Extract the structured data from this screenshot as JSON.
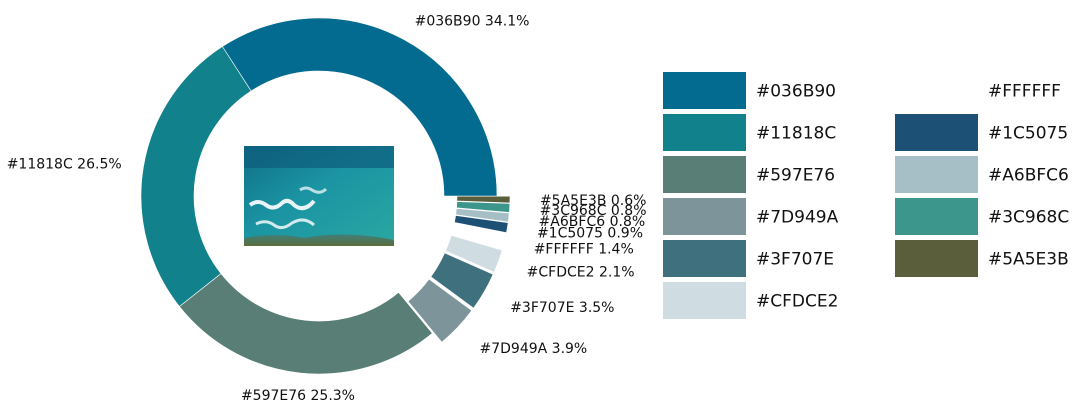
{
  "chart_data": {
    "type": "pie",
    "donut": true,
    "start_angle_deg": 0,
    "direction": "counterclockwise",
    "slices": [
      {
        "label": "#036B90",
        "value": 34.1,
        "color": "#036B90",
        "exploded": false
      },
      {
        "label": "#11818C",
        "value": 26.5,
        "color": "#11818C",
        "exploded": false
      },
      {
        "label": "#597E76",
        "value": 25.3,
        "color": "#597E76",
        "exploded": false
      },
      {
        "label": "#7D949A",
        "value": 3.9,
        "color": "#7D949A",
        "exploded": true
      },
      {
        "label": "#3F707E",
        "value": 3.5,
        "color": "#3F707E",
        "exploded": true
      },
      {
        "label": "#CFDCE2",
        "value": 2.1,
        "color": "#CFDCE2",
        "exploded": true
      },
      {
        "label": "#FFFFFF",
        "value": 1.4,
        "color": "#FFFFFF",
        "exploded": true
      },
      {
        "label": "#1C5075",
        "value": 0.9,
        "color": "#1C5075",
        "exploded": true
      },
      {
        "label": "#A6BFC6",
        "value": 0.8,
        "color": "#A6BFC6",
        "exploded": true
      },
      {
        "label": "#3C968C",
        "value": 0.8,
        "color": "#3C968C",
        "exploded": true
      },
      {
        "label": "#5A5E3B",
        "value": 0.6,
        "color": "#5A5E3B",
        "exploded": true
      }
    ],
    "legend": {
      "placement": "right",
      "columns": [
        [
          "#036B90",
          "#11818C",
          "#597E76",
          "#7D949A",
          "#3F707E",
          "#CFDCE2"
        ],
        [
          "#FFFFFF",
          "#1C5075",
          "#A6BFC6",
          "#3C968C",
          "#5A5E3B"
        ]
      ]
    },
    "center_image": "sea-photo"
  }
}
